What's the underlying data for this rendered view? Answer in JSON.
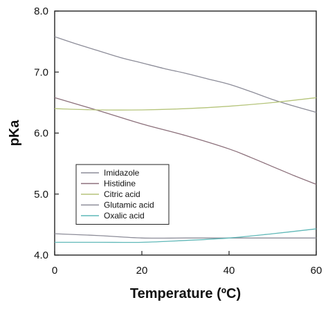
{
  "chart_data": {
    "type": "line",
    "title": "",
    "xlabel": "Temperature (ºC)",
    "ylabel": "pKa",
    "xlim": [
      0,
      60
    ],
    "ylim": [
      4.0,
      8.0
    ],
    "xticks": [
      0,
      20,
      40,
      60
    ],
    "xtick_labels": [
      "0",
      "20",
      "40",
      "60"
    ],
    "yticks": [
      4.0,
      5.0,
      6.0,
      7.0,
      8.0
    ],
    "ytick_labels": [
      "4.0",
      "5.0",
      "6.0",
      "7.0",
      "8.0"
    ],
    "grid": false,
    "legend_position": "lower-left",
    "series": [
      {
        "name": "Imidazole",
        "color": "#8c8c98",
        "x": [
          0,
          5,
          10,
          15,
          20,
          25,
          30,
          35,
          40,
          45,
          50,
          55,
          60
        ],
        "y": [
          7.58,
          7.46,
          7.35,
          7.24,
          7.15,
          7.06,
          6.98,
          6.89,
          6.8,
          6.68,
          6.55,
          6.44,
          6.34
        ]
      },
      {
        "name": "Histidine",
        "color": "#8b6f7a",
        "x": [
          0,
          10,
          20,
          30,
          40,
          45,
          50,
          55,
          60
        ],
        "y": [
          6.58,
          6.37,
          6.15,
          5.96,
          5.74,
          5.6,
          5.45,
          5.3,
          5.16
        ]
      },
      {
        "name": "Citric acid",
        "color": "#b5c47a",
        "x": [
          0,
          10,
          20,
          30,
          40,
          50,
          60
        ],
        "y": [
          6.4,
          6.38,
          6.38,
          6.4,
          6.44,
          6.5,
          6.58
        ]
      },
      {
        "name": "Glutamic acid",
        "color": "#8c8c98",
        "x": [
          0,
          10,
          20,
          30,
          40,
          50,
          60
        ],
        "y": [
          4.35,
          4.32,
          4.28,
          4.28,
          4.28,
          4.28,
          4.28
        ]
      },
      {
        "name": "Oxalic acid",
        "color": "#5fb8b8",
        "x": [
          0,
          10,
          20,
          30,
          40,
          50,
          60
        ],
        "y": [
          4.21,
          4.21,
          4.21,
          4.24,
          4.28,
          4.35,
          4.43
        ]
      }
    ]
  }
}
